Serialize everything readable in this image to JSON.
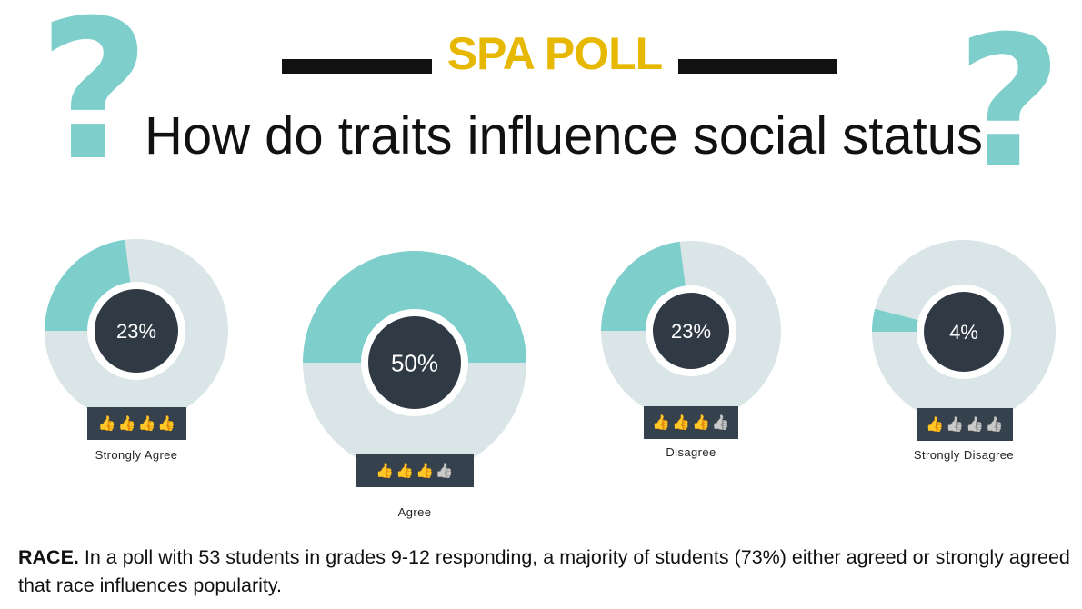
{
  "header": {
    "kicker": "SPA POLL",
    "title": "How do traits influence social status"
  },
  "icons": {
    "left": "?",
    "right": "?",
    "thumb": "👍",
    "names": [
      "question-mark-icon",
      "thumbs-up-icon"
    ]
  },
  "colors": {
    "accent": "#e6b800",
    "teal": "#7ecfcc",
    "ring": "#d9e5e6",
    "center": "#2f3a45",
    "plate": "#35414c",
    "rule": "#111111",
    "thumb_on": "#e6b800",
    "thumb_off": "#9aa0a4"
  },
  "chart_data": {
    "type": "pie",
    "title": "How do traits influence social status",
    "categories": [
      "Strongly Agree",
      "Agree",
      "Disagree",
      "Strongly Disagree"
    ],
    "values": [
      23,
      50,
      23,
      4
    ],
    "labels": [
      "23%",
      "50%",
      "23%",
      "4%"
    ],
    "rating_thumbs": [
      4,
      3,
      3,
      1
    ],
    "rating_max": 4,
    "unit": "%"
  },
  "caption": {
    "lead": "RACE.",
    "text": " In a poll with 53 students in grades 9-12 responding, a majority of students (73%) either agreed or strongly agreed that race influences popularity."
  }
}
